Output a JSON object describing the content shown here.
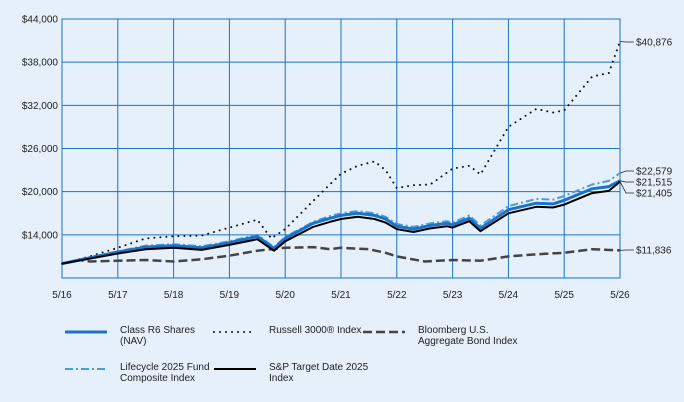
{
  "chart_data": {
    "type": "line",
    "x_ticks": [
      "5/16",
      "5/17",
      "5/18",
      "5/19",
      "5/20",
      "5/21",
      "5/22",
      "5/23",
      "5/24",
      "5/25",
      "5/26"
    ],
    "y_ticks": [
      "$14,000",
      "$20,000",
      "$26,000",
      "$32,000",
      "$38,000",
      "$44,000"
    ],
    "ylim": [
      8000,
      44000
    ],
    "grid": true,
    "series": [
      {
        "key": "classR6",
        "name": "Class R6 Shares\n(NAV)",
        "color": "#1a73c6",
        "style": "solid-thick",
        "end_label": "$21,515",
        "x": [
          0,
          0.5,
          1,
          1.5,
          2,
          2.5,
          3,
          3.5,
          3.8,
          4,
          4.5,
          4.8,
          5,
          5.3,
          5.6,
          5.8,
          6,
          6.3,
          6.6,
          6.9,
          7,
          7.3,
          7.5,
          8,
          8.5,
          8.8,
          9,
          9.5,
          9.8,
          10
        ],
        "values": [
          10000,
          10800,
          11600,
          12300,
          12500,
          12200,
          12900,
          13800,
          12100,
          13500,
          15600,
          16300,
          16700,
          17000,
          16700,
          16200,
          15200,
          14800,
          15300,
          15600,
          15400,
          16300,
          14900,
          17500,
          18400,
          18300,
          18800,
          20400,
          20700,
          21515
        ]
      },
      {
        "key": "russell",
        "name": "Russell 3000® Index",
        "color": "#111111",
        "style": "dotted",
        "end_label": "$40,876",
        "x": [
          0,
          0.5,
          1,
          1.5,
          2,
          2.5,
          3,
          3.5,
          3.75,
          4,
          4.5,
          4.8,
          5,
          5.3,
          5.6,
          5.8,
          6,
          6.3,
          6.6,
          7,
          7.3,
          7.5,
          8,
          8.5,
          8.8,
          9,
          9.5,
          9.8,
          10
        ],
        "values": [
          10000,
          11000,
          12200,
          13500,
          13800,
          13900,
          15000,
          16100,
          13500,
          14800,
          18700,
          21000,
          22500,
          23600,
          24200,
          23000,
          20500,
          20900,
          21000,
          23200,
          23600,
          22400,
          29000,
          31500,
          31000,
          31300,
          36000,
          36500,
          40876
        ]
      },
      {
        "key": "bloomberg",
        "name": "Bloomberg U.S.\nAggregate Bond Index",
        "color": "#444444",
        "style": "dashed",
        "end_label": "$11,836",
        "x": [
          0,
          0.3,
          0.5,
          1,
          1.5,
          2,
          2.5,
          3,
          3.5,
          4,
          4.5,
          4.8,
          5,
          5.5,
          5.8,
          6,
          6.5,
          7,
          7.5,
          8,
          8.5,
          9,
          9.5,
          10
        ],
        "values": [
          10000,
          10500,
          10300,
          10400,
          10500,
          10300,
          10600,
          11100,
          11800,
          12200,
          12300,
          12000,
          12200,
          12000,
          11500,
          11000,
          10300,
          10500,
          10400,
          11000,
          11300,
          11500,
          12000,
          11836
        ]
      },
      {
        "key": "lifecycle",
        "name": "Lifecycle 2025 Fund\nComposite Index",
        "color": "#4a9ee0",
        "style": "dashdot",
        "end_label": "$22,579",
        "x": [
          0,
          0.5,
          1,
          1.5,
          2,
          2.5,
          3,
          3.5,
          3.8,
          4,
          4.5,
          4.8,
          5,
          5.3,
          5.6,
          5.8,
          6,
          6.3,
          6.6,
          6.9,
          7,
          7.3,
          7.5,
          8,
          8.5,
          8.8,
          9,
          9.5,
          9.8,
          10
        ],
        "values": [
          10000,
          10900,
          11700,
          12500,
          12700,
          12400,
          13100,
          14000,
          12300,
          13700,
          15800,
          16600,
          17000,
          17300,
          17000,
          16500,
          15500,
          15100,
          15600,
          15900,
          15700,
          16700,
          15300,
          18000,
          19000,
          18900,
          19400,
          21000,
          21500,
          22579
        ]
      },
      {
        "key": "sp",
        "name": "S&P Target Date 2025\nIndex",
        "color": "#000000",
        "style": "solid",
        "end_label": "$21,405",
        "x": [
          0,
          0.5,
          1,
          1.5,
          2,
          2.5,
          3,
          3.5,
          3.8,
          4,
          4.5,
          4.8,
          5,
          5.3,
          5.6,
          5.8,
          6,
          6.3,
          6.6,
          6.9,
          7,
          7.3,
          7.5,
          8,
          8.5,
          8.8,
          9,
          9.5,
          9.8,
          10
        ],
        "values": [
          10000,
          10700,
          11400,
          12000,
          12200,
          11900,
          12600,
          13400,
          11800,
          13100,
          15100,
          15800,
          16200,
          16500,
          16200,
          15700,
          14800,
          14400,
          14900,
          15200,
          15000,
          15900,
          14500,
          17000,
          17900,
          17800,
          18200,
          19800,
          20100,
          21405
        ]
      }
    ]
  },
  "colors": {
    "background": "#e6f0fa",
    "grid": "#1a73c6"
  }
}
